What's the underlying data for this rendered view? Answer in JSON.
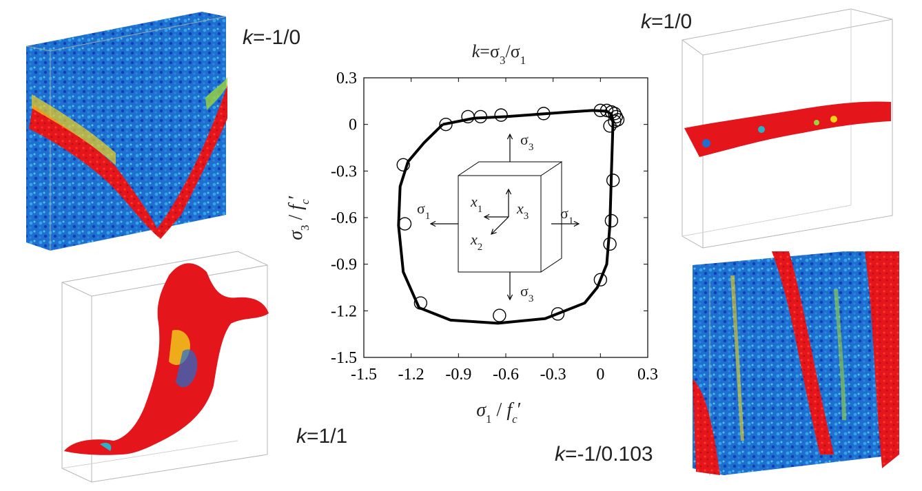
{
  "labels": {
    "k_top_left": "-1/0",
    "k_top_right": "1/0",
    "k_bottom_left": "1/1",
    "k_bottom_right": "-1/0.103",
    "k_prefix": "k",
    "k_eq": "="
  },
  "chart_data": {
    "type": "scatter",
    "title": "k=σ3/σ1",
    "xlabel": "σ1 / fc′",
    "ylabel": "σ3 / fc′",
    "xlim": [
      -1.5,
      0.3
    ],
    "ylim": [
      -1.5,
      0.3
    ],
    "xticks": [
      "-1.5",
      "-1.2",
      "-0.9",
      "-0.6",
      "-0.3",
      "0",
      "0.3"
    ],
    "yticks": [
      "0.3",
      "0",
      "-0.3",
      "-0.6",
      "-0.9",
      "-1.2",
      "-1.5"
    ],
    "grid": false,
    "series": [
      {
        "kind": "points",
        "marker": "open-circle",
        "x": [
          -0.98,
          -0.84,
          -0.76,
          -0.63,
          -0.36,
          0.0,
          0.04,
          0.07,
          0.09,
          0.1,
          0.11,
          0.09,
          0.06,
          0.08,
          0.07,
          0.06,
          0.0,
          -0.27,
          -0.64,
          -1.14,
          -1.24,
          -1.25
        ],
        "y": [
          0.0,
          0.05,
          0.05,
          0.06,
          0.07,
          0.09,
          0.09,
          0.08,
          0.07,
          0.05,
          0.03,
          0.02,
          -0.01,
          -0.36,
          -0.62,
          -0.77,
          -1.0,
          -1.22,
          -1.23,
          -1.15,
          -0.64,
          -0.26
        ]
      },
      {
        "kind": "line",
        "x": [
          -1.0,
          -0.8,
          -0.6,
          -0.4,
          -0.2,
          -0.05,
          0.04,
          0.07,
          0.08,
          0.07,
          0.06,
          0.04,
          -0.02,
          -0.1,
          -0.35,
          -0.65,
          -0.95,
          -1.15,
          -1.25,
          -1.28,
          -1.27,
          -1.22,
          -1.12,
          -1.0
        ],
        "y": [
          0.0,
          0.04,
          0.05,
          0.065,
          0.08,
          0.09,
          0.085,
          0.065,
          0.02,
          -0.3,
          -0.65,
          -0.9,
          -1.05,
          -1.15,
          -1.25,
          -1.28,
          -1.26,
          -1.18,
          -0.95,
          -0.65,
          -0.4,
          -0.24,
          -0.12,
          0.0
        ]
      }
    ],
    "inset": {
      "labels": {
        "s3_top": "σ3",
        "s3_bottom": "σ3",
        "s1_left": "σ1",
        "s1_right": "σ1",
        "x1": "x1",
        "x2": "x2",
        "x3": "x3"
      }
    }
  }
}
